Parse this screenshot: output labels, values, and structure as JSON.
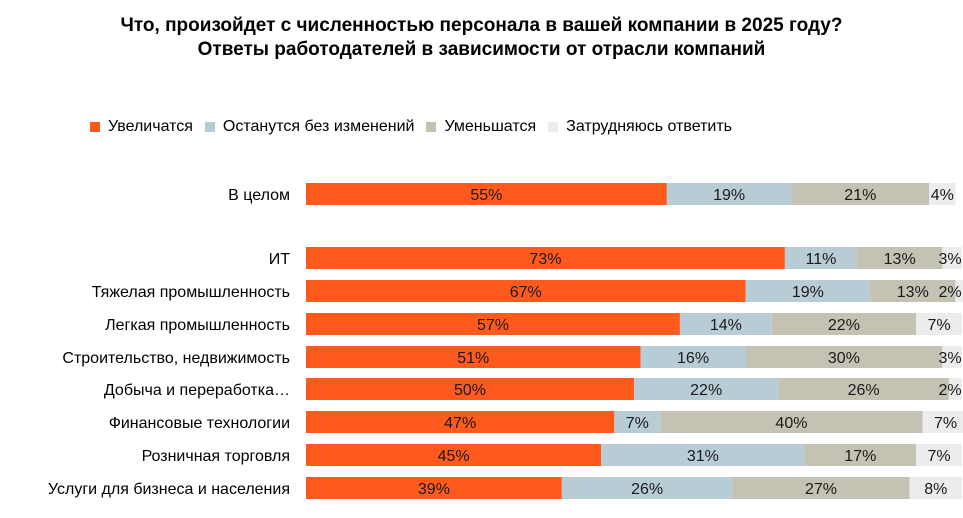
{
  "title": "Что, произойдет с численностью персонала в вашей компании в 2025 году? Ответы работодателей в зависимости от отрасли компаний",
  "chart_data": {
    "type": "bar",
    "orientation": "horizontal",
    "stacked": true,
    "percent_stacked": true,
    "title": "Что, произойдет с численностью персонала в вашей компании в 2025 году? Ответы работодателей в зависимости от отрасли компаний",
    "categories": [
      "В целом",
      "ИТ",
      "Тяжелая промышленность",
      "Легкая промышленность",
      "Строительство, недвижимость",
      "Добыча и переработка…",
      "Финансовые технологии",
      "Розничная торговля",
      "Услуги для бизнеса и населения"
    ],
    "series": [
      {
        "name": "Увеличатся",
        "color": "#fe5a1d",
        "values": [
          55,
          73,
          67,
          57,
          51,
          50,
          47,
          45,
          39
        ],
        "labels": [
          "55%",
          "73%",
          "67%",
          "57%",
          "51%",
          "50%",
          "47%",
          "45%",
          "39%"
        ]
      },
      {
        "name": "Останутся без изменений",
        "color": "#b8ccd5",
        "values": [
          19,
          11,
          19,
          14,
          16,
          22,
          7,
          31,
          26
        ],
        "labels": [
          "19%",
          "11%",
          "19%",
          "14%",
          "16%",
          "22%",
          "7%",
          "31%",
          "26%"
        ]
      },
      {
        "name": "Уменьшатся",
        "color": "#c4c3b3",
        "values": [
          21,
          13,
          13,
          22,
          30,
          26,
          40,
          17,
          27
        ],
        "labels": [
          "21%",
          "13%",
          "13%",
          "22%",
          "30%",
          "26%",
          "40%",
          "17%",
          "27%"
        ]
      },
      {
        "name": "Затрудняюсь ответить",
        "color": "#ececec",
        "values": [
          4,
          3,
          2,
          7,
          3,
          2,
          7,
          7,
          8
        ],
        "labels": [
          "4%",
          "3%",
          "2%",
          "7%",
          "3%",
          "2%",
          "7%",
          "7%",
          "8%"
        ]
      }
    ],
    "xlim": [
      0,
      100
    ],
    "grid": false,
    "legend_position": "top"
  }
}
